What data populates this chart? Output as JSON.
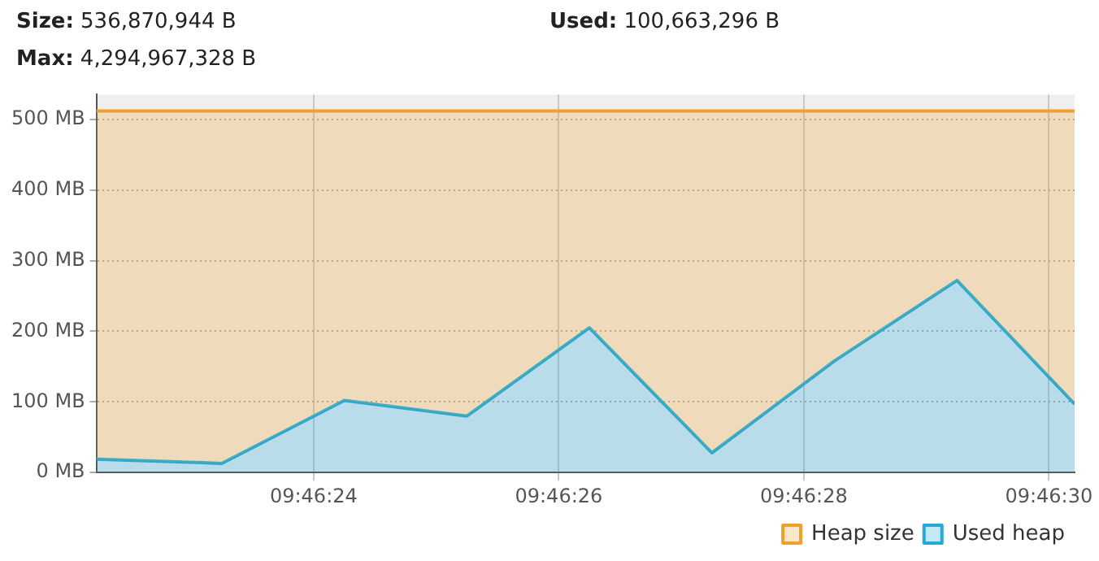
{
  "chart_data": {
    "type": "area",
    "annotations": [
      "Size: 536,870,944 B",
      "Used: 100,663,296 B",
      "Max: 4,294,967,328 B"
    ],
    "series": [
      {
        "name": "Heap size",
        "color": "#f0a030",
        "x": [
          9.7728408,
          9.773125,
          9.7734028,
          9.7736806,
          9.7739583,
          9.7742361,
          9.7745139,
          9.7747917,
          9.7750583
        ],
        "values": [
          512,
          512,
          512,
          512,
          512,
          512,
          512,
          512,
          512
        ]
      },
      {
        "name": "Used heap",
        "color": "#22aad8",
        "x": [
          9.7728408,
          9.773125,
          9.7734028,
          9.7736806,
          9.7739583,
          9.7742361,
          9.7745139,
          9.7747917,
          9.7750583
        ],
        "values": [
          19,
          13,
          102,
          80,
          205,
          28,
          158,
          272,
          97
        ]
      }
    ],
    "xlim": [
      9.7728408,
      9.7750583
    ],
    "xticks": [
      {
        "value": 9.7733333,
        "label": "09:46:24"
      },
      {
        "value": 9.7738889,
        "label": "09:46:26"
      },
      {
        "value": 9.7744444,
        "label": "09:46:28"
      },
      {
        "value": 9.775,
        "label": "09:46:30"
      }
    ],
    "ylim": [
      0,
      535
    ],
    "yticks": [
      {
        "value": 0,
        "label": "0 MB"
      },
      {
        "value": 100,
        "label": "100 MB"
      },
      {
        "value": 200,
        "label": "200 MB"
      },
      {
        "value": 300,
        "label": "300 MB"
      },
      {
        "value": 400,
        "label": "400 MB"
      },
      {
        "value": 500,
        "label": "500 MB"
      }
    ],
    "grid": true,
    "legend": "bottom right",
    "marker": "none",
    "line_style": "solid"
  }
}
